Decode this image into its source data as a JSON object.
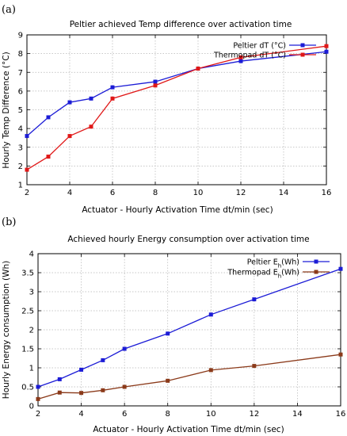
{
  "chart_data": [
    {
      "type": "line",
      "panel_label": "(a)",
      "title": "Peltier achieved Temp difference over activation time",
      "xlabel": "Actuator - Hourly Activation Time dt/min (sec)",
      "ylabel": "Hourly Temp Difference (°C)",
      "xlim": [
        2,
        16
      ],
      "ylim": [
        1,
        9
      ],
      "xticks": [
        2,
        4,
        6,
        8,
        10,
        12,
        14,
        16
      ],
      "yticks": [
        1,
        2,
        3,
        4,
        5,
        6,
        7,
        8,
        9
      ],
      "grid": true,
      "legend_position": "top-right",
      "series": [
        {
          "name": "Peltier dT (°C)",
          "color": "#1c1cd6",
          "x": [
            2,
            3,
            4,
            5,
            6,
            8,
            10,
            12,
            16
          ],
          "y": [
            3.6,
            4.6,
            5.4,
            5.6,
            6.2,
            6.5,
            7.2,
            7.6,
            8.1
          ]
        },
        {
          "name": "Thermopad dT (°C)",
          "color": "#e01818",
          "x": [
            2,
            3,
            4,
            5,
            6,
            8,
            10,
            12,
            16
          ],
          "y": [
            1.8,
            2.5,
            3.6,
            4.1,
            5.6,
            6.3,
            7.2,
            7.8,
            8.4
          ]
        }
      ]
    },
    {
      "type": "line",
      "panel_label": "(b)",
      "title": "Achieved hourly Energy consumption over activation time",
      "xlabel": "Actuator - Hourly Activation Time dt/min (sec)",
      "ylabel": "Hourly Energy consumption (Wh)",
      "xlim": [
        2,
        16
      ],
      "ylim": [
        0,
        4
      ],
      "xticks": [
        2,
        4,
        6,
        8,
        10,
        12,
        14,
        16
      ],
      "yticks": [
        0,
        0.5,
        1,
        1.5,
        2,
        2.5,
        3,
        3.5,
        4
      ],
      "grid": true,
      "legend_position": "top-right",
      "series": [
        {
          "name": "Peltier E",
          "name_sub": "h",
          "name_suffix": "(Wh)",
          "color": "#1c1cd6",
          "x": [
            2,
            3,
            4,
            5,
            6,
            8,
            10,
            12,
            16
          ],
          "y": [
            0.5,
            0.7,
            0.95,
            1.2,
            1.5,
            1.9,
            2.4,
            2.8,
            3.6
          ]
        },
        {
          "name": "Thermopad E",
          "name_sub": "h",
          "name_suffix": "(Wh)",
          "color": "#8b3a1a",
          "x": [
            2,
            3,
            4,
            5,
            6,
            8,
            10,
            12,
            16
          ],
          "y": [
            0.18,
            0.35,
            0.34,
            0.41,
            0.5,
            0.66,
            0.94,
            1.05,
            1.35
          ]
        }
      ]
    }
  ]
}
